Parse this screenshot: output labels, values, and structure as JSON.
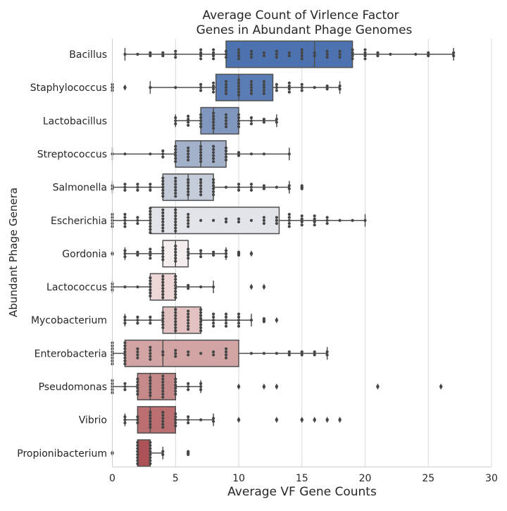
{
  "chart_data": {
    "type": "box",
    "orientation": "horizontal",
    "title_lines": [
      "Average Count of Virlence Factor",
      "Genes in Abundant Phage Genomes"
    ],
    "xlabel": "Average VF Gene Counts",
    "ylabel": "Abundant Phage Genera",
    "xlim": [
      0,
      30
    ],
    "xticks": [
      0,
      5,
      10,
      15,
      20,
      25,
      30
    ],
    "grid": "vertical",
    "categories": [
      "Bacillus",
      "Staphylococcus",
      "Lactobacillus",
      "Streptococcus",
      "Salmonella",
      "Escherichia",
      "Gordonia",
      "Lactococcus",
      "Mycobacterium",
      "Enterobacteria",
      "Pseudomonas",
      "Vibrio",
      "Propionibacterium"
    ],
    "colors": [
      "#4c72b0",
      "#5b7db5",
      "#7f96bf",
      "#a3b1cb",
      "#c4ccd9",
      "#e3e3ea",
      "#f4eeee",
      "#ecd6d6",
      "#e2c1c1",
      "#d3a4a4",
      "#c68989",
      "#bb6f70",
      "#ad5358"
    ],
    "boxes": [
      {
        "category": "Bacillus",
        "whislo": 1,
        "q1": 9,
        "med": 16,
        "q3": 19,
        "whishi": 27,
        "fliers": []
      },
      {
        "category": "Staphylococcus",
        "whislo": 3,
        "q1": 8.2,
        "med": 10,
        "q3": 12.7,
        "whishi": 18,
        "fliers": [
          0,
          1
        ]
      },
      {
        "category": "Lactobacillus",
        "whislo": 5,
        "q1": 7,
        "med": 8,
        "q3": 10,
        "whishi": 13,
        "fliers": []
      },
      {
        "category": "Streptococcus",
        "whislo": 0,
        "q1": 5,
        "med": 7,
        "q3": 9,
        "whishi": 14,
        "fliers": []
      },
      {
        "category": "Salmonella",
        "whislo": 0,
        "q1": 4,
        "med": 6,
        "q3": 8,
        "whishi": 14,
        "fliers": [
          15
        ]
      },
      {
        "category": "Escherichia",
        "whislo": 0,
        "q1": 3,
        "med": 5,
        "q3": 13.2,
        "whishi": 20,
        "fliers": []
      },
      {
        "category": "Gordonia",
        "whislo": 1,
        "q1": 4,
        "med": 5,
        "q3": 6,
        "whishi": 9,
        "fliers": [
          0,
          10,
          11
        ]
      },
      {
        "category": "Lactococcus",
        "whislo": 0,
        "q1": 3,
        "med": 4,
        "q3": 5,
        "whishi": 8,
        "fliers": [
          11,
          12
        ]
      },
      {
        "category": "Mycobacterium",
        "whislo": 1,
        "q1": 4,
        "med": 5,
        "q3": 7,
        "whishi": 11,
        "fliers": [
          12,
          13
        ]
      },
      {
        "category": "Enterobacteria",
        "whislo": 0,
        "q1": 1,
        "med": 4,
        "q3": 10,
        "whishi": 17,
        "fliers": []
      },
      {
        "category": "Pseudomonas",
        "whislo": 0,
        "q1": 2,
        "med": 3,
        "q3": 5,
        "whishi": 7,
        "fliers": [
          10,
          12,
          13,
          21,
          26
        ]
      },
      {
        "category": "Vibrio",
        "whislo": 1,
        "q1": 2,
        "med": 3,
        "q3": 5,
        "whishi": 8,
        "fliers": [
          10,
          13,
          15,
          16,
          17,
          18
        ]
      },
      {
        "category": "Propionibacterium",
        "whislo": 2,
        "q1": 2,
        "med": 2,
        "q3": 3,
        "whishi": 4,
        "fliers": [
          0,
          6
        ]
      }
    ],
    "swarm": [
      [
        [
          1,
          1
        ],
        [
          2,
          1
        ],
        [
          3,
          2
        ],
        [
          4,
          2
        ],
        [
          5,
          3
        ],
        [
          7,
          4
        ],
        [
          8,
          4
        ],
        [
          9,
          3
        ],
        [
          10,
          4
        ],
        [
          11,
          3
        ],
        [
          12,
          2
        ],
        [
          13,
          3
        ],
        [
          14,
          2
        ],
        [
          15,
          4
        ],
        [
          16,
          2
        ],
        [
          17,
          3
        ],
        [
          18,
          3
        ],
        [
          19,
          4
        ],
        [
          20,
          4
        ],
        [
          21,
          2
        ],
        [
          22,
          1
        ],
        [
          24,
          1
        ],
        [
          25,
          2
        ],
        [
          27,
          2
        ]
      ],
      [
        [
          0,
          3
        ],
        [
          1,
          1
        ],
        [
          3,
          1
        ],
        [
          5,
          1
        ],
        [
          7,
          3
        ],
        [
          8,
          4
        ],
        [
          9,
          5
        ],
        [
          10,
          6
        ],
        [
          11,
          5
        ],
        [
          12,
          5
        ],
        [
          13,
          3
        ],
        [
          14,
          4
        ],
        [
          15,
          3
        ],
        [
          16,
          1
        ],
        [
          17,
          2
        ],
        [
          18,
          2
        ]
      ],
      [
        [
          5,
          3
        ],
        [
          6,
          4
        ],
        [
          7,
          5
        ],
        [
          8,
          6
        ],
        [
          9,
          5
        ],
        [
          10,
          5
        ],
        [
          11,
          3
        ],
        [
          12,
          2
        ],
        [
          13,
          2
        ]
      ],
      [
        [
          0,
          1
        ],
        [
          1,
          1
        ],
        [
          3,
          1
        ],
        [
          4,
          3
        ],
        [
          5,
          6
        ],
        [
          6,
          5
        ],
        [
          7,
          6
        ],
        [
          8,
          6
        ],
        [
          9,
          5
        ],
        [
          10,
          2
        ],
        [
          11,
          1
        ],
        [
          12,
          1
        ],
        [
          14,
          1
        ]
      ],
      [
        [
          0,
          2
        ],
        [
          1,
          3
        ],
        [
          2,
          3
        ],
        [
          3,
          3
        ],
        [
          4,
          7
        ],
        [
          5,
          7
        ],
        [
          6,
          6
        ],
        [
          7,
          6
        ],
        [
          8,
          6
        ],
        [
          9,
          1
        ],
        [
          10,
          3
        ],
        [
          11,
          3
        ],
        [
          12,
          2
        ],
        [
          13,
          1
        ],
        [
          14,
          2
        ],
        [
          15,
          2
        ]
      ],
      [
        [
          0,
          5
        ],
        [
          1,
          5
        ],
        [
          2,
          3
        ],
        [
          3,
          9
        ],
        [
          4,
          8
        ],
        [
          5,
          8
        ],
        [
          6,
          5
        ],
        [
          7,
          1
        ],
        [
          8,
          1
        ],
        [
          9,
          2
        ],
        [
          10,
          2
        ],
        [
          11,
          1
        ],
        [
          12,
          3
        ],
        [
          13,
          3
        ],
        [
          14,
          5
        ],
        [
          15,
          4
        ],
        [
          16,
          4
        ],
        [
          17,
          3
        ],
        [
          18,
          1
        ],
        [
          19,
          1
        ],
        [
          20,
          1
        ]
      ],
      [
        [
          0,
          1
        ],
        [
          1,
          3
        ],
        [
          2,
          2
        ],
        [
          3,
          4
        ],
        [
          4,
          5
        ],
        [
          5,
          6
        ],
        [
          6,
          4
        ],
        [
          7,
          3
        ],
        [
          8,
          2
        ],
        [
          9,
          3
        ],
        [
          10,
          2
        ],
        [
          11,
          1
        ]
      ],
      [
        [
          0,
          3
        ],
        [
          1,
          1
        ],
        [
          2,
          1
        ],
        [
          3,
          7
        ],
        [
          4,
          8
        ],
        [
          5,
          8
        ],
        [
          6,
          2
        ],
        [
          7,
          1
        ],
        [
          8,
          1
        ],
        [
          11,
          1
        ],
        [
          12,
          1
        ]
      ],
      [
        [
          1,
          3
        ],
        [
          2,
          3
        ],
        [
          3,
          3
        ],
        [
          4,
          6
        ],
        [
          5,
          8
        ],
        [
          6,
          7
        ],
        [
          7,
          8
        ],
        [
          8,
          5
        ],
        [
          9,
          5
        ],
        [
          10,
          5
        ],
        [
          11,
          1
        ],
        [
          12,
          2
        ],
        [
          13,
          1
        ]
      ],
      [
        [
          0,
          8
        ],
        [
          1,
          8
        ],
        [
          2,
          4
        ],
        [
          3,
          5
        ],
        [
          4,
          2
        ],
        [
          5,
          3
        ],
        [
          6,
          2
        ],
        [
          7,
          1
        ],
        [
          8,
          2
        ],
        [
          9,
          4
        ],
        [
          11,
          1
        ],
        [
          12,
          1
        ],
        [
          13,
          1
        ],
        [
          14,
          2
        ],
        [
          15,
          2
        ],
        [
          16,
          2
        ],
        [
          17,
          2
        ]
      ],
      [
        [
          0,
          5
        ],
        [
          1,
          3
        ],
        [
          2,
          6
        ],
        [
          3,
          7
        ],
        [
          4,
          8
        ],
        [
          5,
          6
        ],
        [
          6,
          3
        ],
        [
          7,
          3
        ],
        [
          10,
          1
        ],
        [
          12,
          1
        ],
        [
          13,
          1
        ],
        [
          21,
          1
        ],
        [
          26,
          1
        ]
      ],
      [
        [
          1,
          3
        ],
        [
          2,
          3
        ],
        [
          3,
          6
        ],
        [
          4,
          6
        ],
        [
          5,
          5
        ],
        [
          6,
          3
        ],
        [
          7,
          1
        ],
        [
          8,
          2
        ],
        [
          10,
          1
        ],
        [
          13,
          1
        ],
        [
          15,
          1
        ],
        [
          16,
          1
        ],
        [
          17,
          1
        ],
        [
          18,
          1
        ]
      ],
      [
        [
          0,
          1
        ],
        [
          2,
          8
        ],
        [
          3,
          8
        ],
        [
          4,
          2
        ],
        [
          6,
          2
        ]
      ]
    ]
  }
}
